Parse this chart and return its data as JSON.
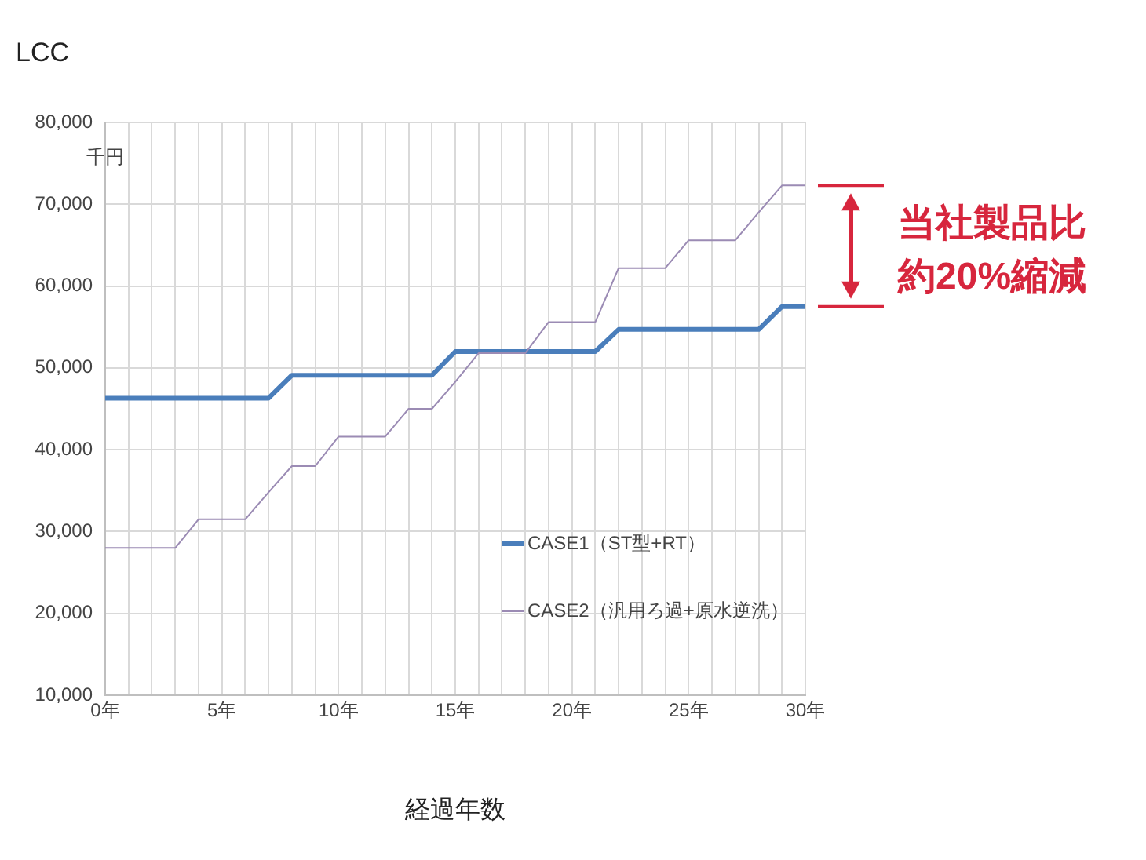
{
  "chart_data": {
    "type": "line",
    "title": "LCC",
    "ylabel": "千円",
    "xlabel": "経過年数",
    "x": [
      0,
      1,
      2,
      3,
      4,
      5,
      6,
      7,
      8,
      9,
      10,
      11,
      12,
      13,
      14,
      15,
      16,
      17,
      18,
      19,
      20,
      21,
      22,
      23,
      24,
      25,
      26,
      27,
      28,
      29,
      30
    ],
    "series": [
      {
        "name": "CASE1（ST型+RT）",
        "color": "#4a7ebb",
        "values": [
          46300,
          46300,
          46300,
          46300,
          46300,
          46300,
          46300,
          46300,
          49100,
          49100,
          49100,
          49100,
          49100,
          49100,
          49100,
          52000,
          52000,
          52000,
          52000,
          52000,
          52000,
          52000,
          54700,
          54700,
          54700,
          54700,
          54700,
          54700,
          54700,
          57500,
          57500
        ]
      },
      {
        "name": "CASE2（汎用ろ過+原水逆洗）",
        "color": "#9b8bb4",
        "values": [
          28000,
          28000,
          28000,
          28000,
          31500,
          31500,
          31500,
          34800,
          38000,
          38000,
          41600,
          41600,
          41600,
          45000,
          45000,
          48300,
          51800,
          51800,
          51800,
          55600,
          55600,
          55600,
          62200,
          62200,
          62200,
          65600,
          65600,
          65600,
          69000,
          72300,
          72300
        ]
      }
    ],
    "xlim": [
      0,
      30
    ],
    "xticks": [
      {
        "value": 0,
        "label": "0年"
      },
      {
        "value": 1,
        "label": null
      },
      {
        "value": 2,
        "label": null
      },
      {
        "value": 3,
        "label": null
      },
      {
        "value": 4,
        "label": null
      },
      {
        "value": 5,
        "label": "5年"
      },
      {
        "value": 6,
        "label": null
      },
      {
        "value": 7,
        "label": null
      },
      {
        "value": 8,
        "label": null
      },
      {
        "value": 9,
        "label": null
      },
      {
        "value": 10,
        "label": "10年"
      },
      {
        "value": 11,
        "label": null
      },
      {
        "value": 12,
        "label": null
      },
      {
        "value": 13,
        "label": null
      },
      {
        "value": 14,
        "label": null
      },
      {
        "value": 15,
        "label": "15年"
      },
      {
        "value": 16,
        "label": null
      },
      {
        "value": 17,
        "label": null
      },
      {
        "value": 18,
        "label": null
      },
      {
        "value": 19,
        "label": null
      },
      {
        "value": 20,
        "label": "20年"
      },
      {
        "value": 21,
        "label": null
      },
      {
        "value": 22,
        "label": null
      },
      {
        "value": 23,
        "label": null
      },
      {
        "value": 24,
        "label": null
      },
      {
        "value": 25,
        "label": "25年"
      },
      {
        "value": 26,
        "label": null
      },
      {
        "value": 27,
        "label": null
      },
      {
        "value": 28,
        "label": null
      },
      {
        "value": 29,
        "label": null
      },
      {
        "value": 30,
        "label": "30年"
      }
    ],
    "ylim": [
      10000,
      80000
    ],
    "yticks": [
      {
        "value": 10000,
        "label": "10,000"
      },
      {
        "value": 20000,
        "label": "20,000"
      },
      {
        "value": 30000,
        "label": "30,000"
      },
      {
        "value": 40000,
        "label": "40,000"
      },
      {
        "value": 50000,
        "label": "50,000"
      },
      {
        "value": 60000,
        "label": "60,000"
      },
      {
        "value": 70000,
        "label": "70,000"
      },
      {
        "value": 80000,
        "label": "80,000"
      }
    ],
    "grid": true,
    "legend": "bottom",
    "marker": "none",
    "line_style": "solid",
    "annotations": [
      "当社製品比",
      "約20%縮減"
    ]
  }
}
